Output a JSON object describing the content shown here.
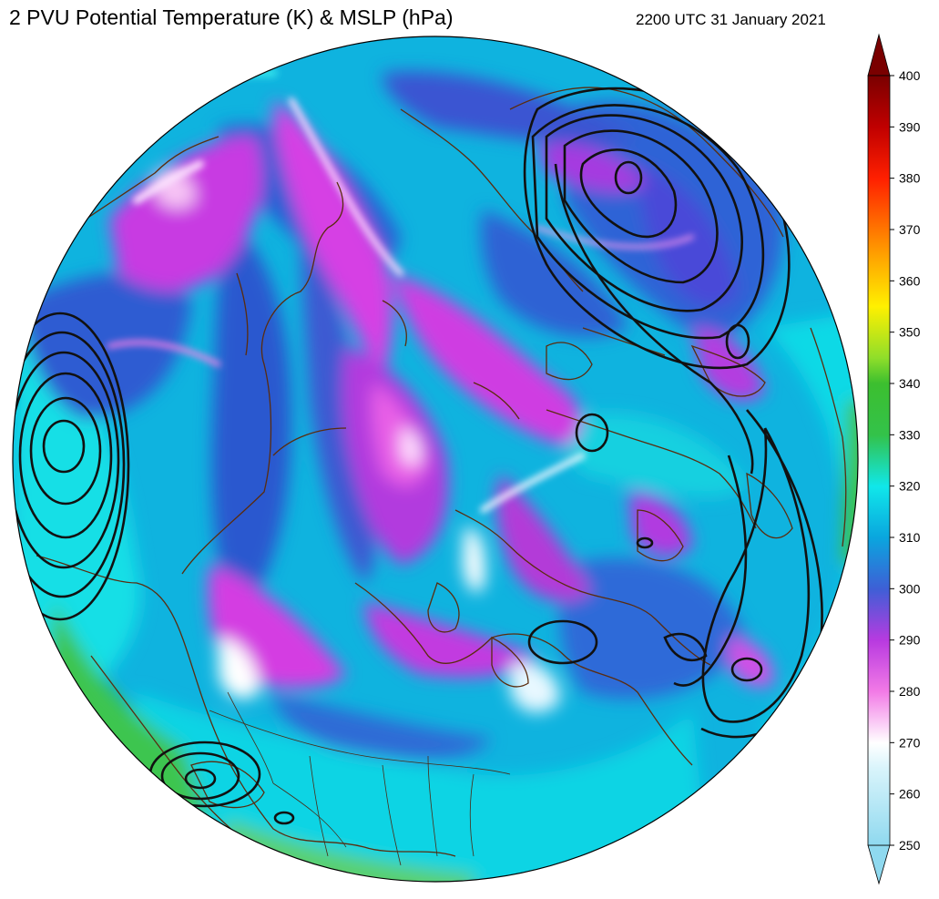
{
  "header": {
    "title": "2 PVU Potential Temperature (K) & MSLP (hPa)",
    "timestamp": "2200 UTC 31 January 2021"
  },
  "colorbar": {
    "tick_labels": [
      "250",
      "260",
      "270",
      "280",
      "290",
      "300",
      "310",
      "320",
      "330",
      "340",
      "350",
      "360",
      "370",
      "380",
      "390",
      "400"
    ],
    "extend": "both",
    "colors": {
      "250": "#8fd9ef",
      "265": "#ffffff",
      "280": "#f27ae6",
      "290": "#b83ae0",
      "300": "#3e5fd6",
      "310": "#0aa6de",
      "320": "#10e7ea",
      "330": "#33c24a",
      "345": "#8fde2a",
      "355": "#fff000",
      "365": "#ffa200",
      "380": "#ff2000",
      "400": "#7a0000"
    }
  },
  "map": {
    "projection": "north-polar-stereographic",
    "coastline_color": "#5a2c0e",
    "contour_color": "#111111",
    "fields": [
      "potential temperature at 2 PVU",
      "mean sea level pressure"
    ]
  }
}
